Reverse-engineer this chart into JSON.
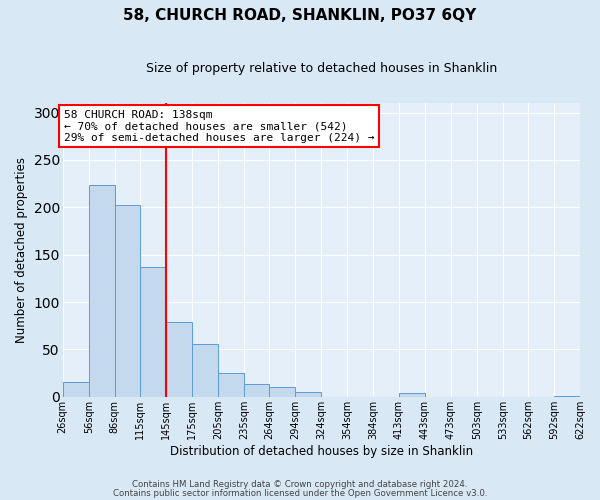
{
  "title": "58, CHURCH ROAD, SHANKLIN, PO37 6QY",
  "subtitle": "Size of property relative to detached houses in Shanklin",
  "xlabel": "Distribution of detached houses by size in Shanklin",
  "ylabel": "Number of detached properties",
  "footer_line1": "Contains HM Land Registry data © Crown copyright and database right 2024.",
  "footer_line2": "Contains public sector information licensed under the Open Government Licence v3.0.",
  "annotation_title": "58 CHURCH ROAD: 138sqm",
  "annotation_line2": "← 70% of detached houses are smaller (542)",
  "annotation_line3": "29% of semi-detached houses are larger (224) →",
  "bar_color": "#c5d9ee",
  "bar_edge_color": "#5b9bd5",
  "ref_line_color": "red",
  "bg_color": "#d9e8f5",
  "plot_bg_color": "#e4eff9",
  "grid_color": "#ffffff",
  "bins": [
    26,
    56,
    86,
    115,
    145,
    175,
    205,
    235,
    264,
    294,
    324,
    354,
    384,
    413,
    443,
    473,
    503,
    533,
    562,
    592,
    622
  ],
  "values": [
    16,
    224,
    202,
    137,
    79,
    56,
    25,
    13,
    10,
    5,
    0,
    0,
    0,
    4,
    0,
    0,
    0,
    0,
    0,
    1
  ],
  "ylim": [
    0,
    310
  ],
  "yticks": [
    0,
    50,
    100,
    150,
    200,
    250,
    300
  ]
}
